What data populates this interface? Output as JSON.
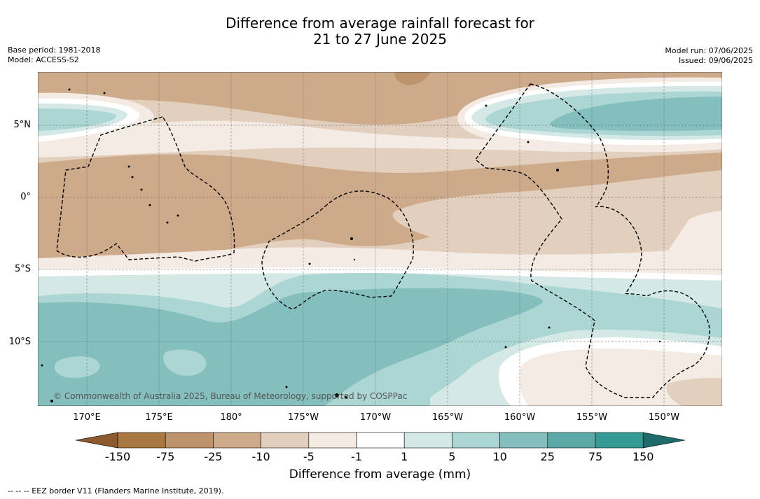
{
  "title_line1": "Difference from average rainfall forecast for",
  "title_line2": "21 to 27 June 2025",
  "meta_left": [
    "Base period: 1981-2018",
    "Model: ACCESS-S2"
  ],
  "meta_right": [
    "Model run: 07/06/2025",
    "Issued: 09/06/2025"
  ],
  "lat_labels": [
    "5°N",
    "0°",
    "5°S",
    "10°S"
  ],
  "lon_labels": [
    "170°E",
    "175°E",
    "180°",
    "175°W",
    "170°W",
    "165°W",
    "160°W",
    "155°W",
    "150°W"
  ],
  "copyright": "© Commonwealth of Australia 2025, Bureau of Meteorology, supported by COSPPac",
  "colorbar": {
    "labels": [
      "-150",
      "-75",
      "-25",
      "-10",
      "-5",
      "-1",
      "1",
      "5",
      "10",
      "25",
      "75",
      "150"
    ],
    "colors": [
      "#8c5a2e",
      "#a97842",
      "#bc936a",
      "#cdab8a",
      "#e2cfbd",
      "#f3ebe4",
      "#ffffff",
      "#d4e8e6",
      "#acd6d4",
      "#84bfbe",
      "#5aa9a7",
      "#359a94",
      "#1d6c69"
    ],
    "title": "Difference from average (mm)"
  },
  "footer": "--  --  -- EEZ border V11 (Flanders Marine Institute, 2019)."
}
